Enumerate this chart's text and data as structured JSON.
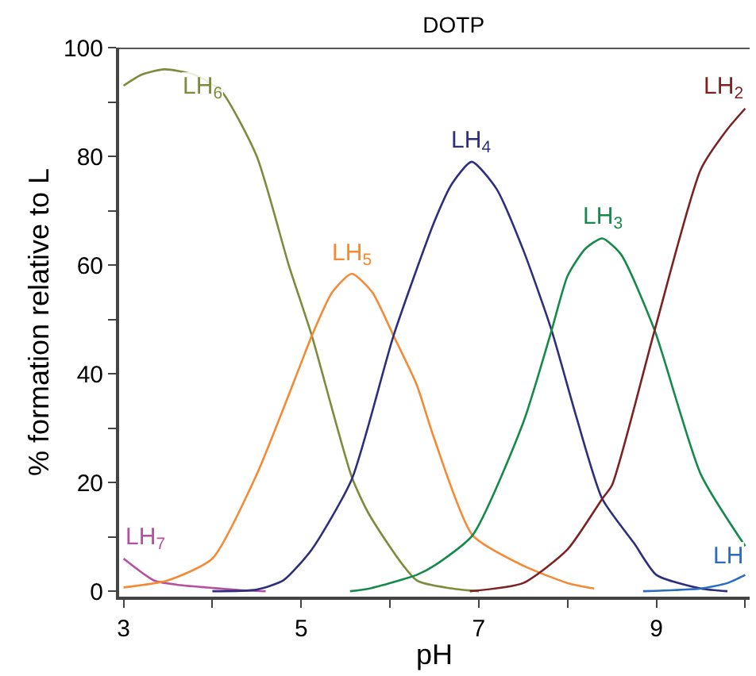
{
  "chart_data": {
    "type": "line",
    "title": "DOTP",
    "xlabel": "pH",
    "ylabel": "% formation relative to L",
    "xlim": [
      2.95,
      10.05
    ],
    "ylim": [
      -1,
      100
    ],
    "xticks": [
      3,
      {
        "value": 4,
        "label": null
      },
      5,
      {
        "value": 6,
        "label": null
      },
      7,
      {
        "value": 8,
        "label": null
      },
      9,
      {
        "value": 10,
        "label": null
      }
    ],
    "yticks": [
      0,
      {
        "value": 10,
        "label": null
      },
      20,
      {
        "value": 30,
        "label": null
      },
      40,
      {
        "value": 50,
        "label": null
      },
      60,
      {
        "value": 70,
        "label": null
      },
      80,
      {
        "value": 90,
        "label": null
      },
      100
    ],
    "legend": false,
    "marker": "none",
    "line_style": "solid",
    "series": [
      {
        "name": "LH$_{7}$",
        "color": "#b3519e",
        "x": [
          3,
          3.34,
          3.6,
          4,
          4.3,
          4.6
        ],
        "values": [
          6,
          2,
          1.2,
          0.6,
          0.2,
          0
        ]
      },
      {
        "name": "LH$_{6}$",
        "color": "#7d8b3c",
        "x": [
          3,
          3.2,
          3.46,
          3.8,
          4.1,
          4.5,
          4.86,
          5.12,
          5.57,
          5.77,
          6.3,
          6.7,
          7
        ],
        "values": [
          93,
          95,
          96,
          95,
          92,
          80,
          60,
          47,
          21,
          14,
          2,
          0.5,
          0
        ]
      },
      {
        "name": "LH$_{5}$",
        "color": "#f58a35",
        "x": [
          3,
          3.5,
          4,
          4.5,
          5,
          5.12,
          5.35,
          5.57,
          5.8,
          6.04,
          6.3,
          6.5,
          6.93,
          7.5,
          8,
          8.3
        ],
        "values": [
          0.7,
          2,
          6,
          21.5,
          42,
          47,
          55,
          58.4,
          55,
          47,
          38,
          28,
          10.3,
          4.7,
          1.5,
          0.5
        ]
      },
      {
        "name": "LH$_{4}$",
        "color": "#2d2f7c",
        "x": [
          4,
          4.5,
          4.8,
          5.12,
          5.57,
          6.04,
          6.5,
          6.7,
          6.92,
          7.2,
          7.5,
          7.82,
          8.1,
          8.39,
          8.75,
          9,
          9.5,
          9.8
        ],
        "values": [
          0,
          0.3,
          2,
          7.7,
          20.6,
          47,
          68,
          75,
          79,
          74,
          62.8,
          48,
          32,
          17,
          8.8,
          3,
          0.5,
          0
        ]
      },
      {
        "name": "LH$_{3}$",
        "color": "#168a4a",
        "x": [
          5.55,
          5.77,
          6.3,
          6.5,
          6.93,
          7.5,
          7.82,
          8,
          8.2,
          8.39,
          8.6,
          8.98,
          9.5,
          10
        ],
        "values": [
          0,
          0.5,
          3,
          4.7,
          10.3,
          31,
          48,
          58,
          63,
          64.9,
          62,
          48,
          21.5,
          8.3
        ]
      },
      {
        "name": "LH$_{2}$",
        "color": "#7d2222",
        "x": [
          6.9,
          7.5,
          8,
          8.39,
          8.5,
          8.98,
          9.5,
          9.8,
          10
        ],
        "values": [
          0,
          1.5,
          7.7,
          17,
          19.5,
          48,
          77.6,
          85,
          88.8
        ]
      },
      {
        "name": "LH",
        "color": "#2b6cc0",
        "x": [
          8.85,
          9.2,
          9.5,
          9.8,
          10
        ],
        "values": [
          0,
          0.2,
          0.5,
          1.5,
          3
        ]
      }
    ]
  }
}
